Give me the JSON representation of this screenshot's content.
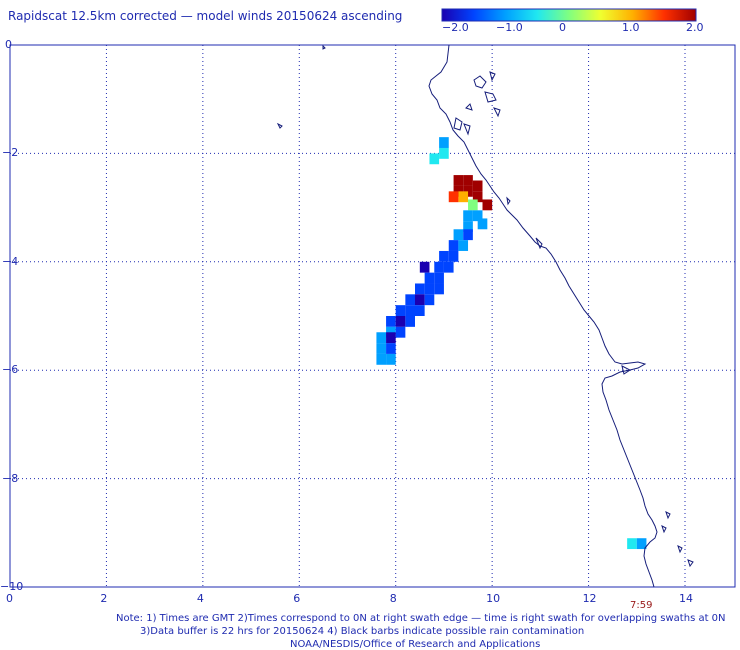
{
  "title": "Rapidscat 12.5km corrected — model winds 20150624 ascending",
  "colorbar": {
    "ticks": [
      "−2.0",
      "−1.0",
      "0",
      "1.0",
      "2.0"
    ],
    "stops": [
      "#1a00b0",
      "#0044ff",
      "#00a0ff",
      "#20e8f0",
      "#80ff80",
      "#f0ff30",
      "#ffb000",
      "#ff3000",
      "#a00000"
    ],
    "range": [
      -2.0,
      2.0
    ]
  },
  "axes": {
    "x_ticks": [
      "0",
      "2",
      "4",
      "6",
      "8",
      "10",
      "12",
      "14"
    ],
    "y_ticks": [
      "0",
      "−2",
      "−4",
      "−6",
      "−8",
      "−10"
    ],
    "xlim": [
      0,
      14.5
    ],
    "ylim": [
      -10,
      0
    ],
    "grid": "dotted"
  },
  "time_label": "7:59",
  "notes": {
    "line1": "Note: 1) Times are GMT 2)Times correspond to 0N at right swath edge — time is right swath for overlapping swaths at 0N",
    "line2": "3)Data buffer is 22 hrs for 20150624 4) Black barbs indicate possible rain contamination",
    "line3": "NOAA/NESDIS/Office of Research and Applications"
  },
  "colors": {
    "text": "#1f2bb0",
    "grid": "#1f2bb0",
    "coast": "#151d7a",
    "time": "#9a1a1a"
  },
  "wind_cells": [
    {
      "lon": 9.0,
      "lat": -1.8,
      "v": -0.8
    },
    {
      "lon": 9.0,
      "lat": -2.0,
      "v": -0.3
    },
    {
      "lon": 8.8,
      "lat": -2.1,
      "v": -0.5
    },
    {
      "lon": 9.3,
      "lat": -2.5,
      "v": 2.0
    },
    {
      "lon": 9.5,
      "lat": -2.5,
      "v": 2.0
    },
    {
      "lon": 9.7,
      "lat": -2.6,
      "v": 2.0
    },
    {
      "lon": 9.3,
      "lat": -2.7,
      "v": 2.0
    },
    {
      "lon": 9.5,
      "lat": -2.7,
      "v": 2.0
    },
    {
      "lon": 9.7,
      "lat": -2.8,
      "v": 2.0
    },
    {
      "lon": 9.4,
      "lat": -2.8,
      "v": 1.0
    },
    {
      "lon": 9.2,
      "lat": -2.8,
      "v": 1.3
    },
    {
      "lon": 9.6,
      "lat": -2.95,
      "v": 0.2
    },
    {
      "lon": 9.9,
      "lat": -2.95,
      "v": 2.0
    },
    {
      "lon": 9.5,
      "lat": -3.15,
      "v": -0.9
    },
    {
      "lon": 9.7,
      "lat": -3.15,
      "v": -1.0
    },
    {
      "lon": 9.8,
      "lat": -3.3,
      "v": -0.8
    },
    {
      "lon": 9.5,
      "lat": -3.35,
      "v": -1.0
    },
    {
      "lon": 9.3,
      "lat": -3.5,
      "v": -1.1
    },
    {
      "lon": 9.5,
      "lat": -3.5,
      "v": -1.6
    },
    {
      "lon": 9.2,
      "lat": -3.7,
      "v": -1.7
    },
    {
      "lon": 9.4,
      "lat": -3.7,
      "v": -1.2
    },
    {
      "lon": 9.0,
      "lat": -3.9,
      "v": -1.6
    },
    {
      "lon": 9.2,
      "lat": -3.9,
      "v": -1.3
    },
    {
      "lon": 8.9,
      "lat": -4.1,
      "v": -1.5
    },
    {
      "lon": 9.1,
      "lat": -4.1,
      "v": -1.3
    },
    {
      "lon": 8.6,
      "lat": -4.1,
      "v": -2.0
    },
    {
      "lon": 8.7,
      "lat": -4.3,
      "v": -1.5
    },
    {
      "lon": 8.9,
      "lat": -4.3,
      "v": -1.6
    },
    {
      "lon": 8.5,
      "lat": -4.5,
      "v": -1.7
    },
    {
      "lon": 8.7,
      "lat": -4.5,
      "v": -1.4
    },
    {
      "lon": 8.9,
      "lat": -4.5,
      "v": -1.6
    },
    {
      "lon": 8.3,
      "lat": -4.7,
      "v": -1.6
    },
    {
      "lon": 8.5,
      "lat": -4.7,
      "v": -1.8
    },
    {
      "lon": 8.7,
      "lat": -4.7,
      "v": -1.4
    },
    {
      "lon": 8.1,
      "lat": -4.9,
      "v": -1.5
    },
    {
      "lon": 8.3,
      "lat": -4.9,
      "v": -1.7
    },
    {
      "lon": 8.5,
      "lat": -4.9,
      "v": -1.5
    },
    {
      "lon": 7.9,
      "lat": -5.1,
      "v": -1.4
    },
    {
      "lon": 8.1,
      "lat": -5.1,
      "v": -2.0
    },
    {
      "lon": 8.3,
      "lat": -5.1,
      "v": -1.6
    },
    {
      "lon": 7.9,
      "lat": -5.3,
      "v": -1.2
    },
    {
      "lon": 8.1,
      "lat": -5.3,
      "v": -1.6
    },
    {
      "lon": 7.7,
      "lat": -5.4,
      "v": -1.0
    },
    {
      "lon": 7.9,
      "lat": -5.4,
      "v": -1.8
    },
    {
      "lon": 7.7,
      "lat": -5.6,
      "v": -1.1
    },
    {
      "lon": 7.9,
      "lat": -5.6,
      "v": -1.3
    },
    {
      "lon": 7.7,
      "lat": -5.8,
      "v": -1.0
    },
    {
      "lon": 7.9,
      "lat": -5.8,
      "v": -1.1
    },
    {
      "lon": 12.9,
      "lat": -9.2,
      "v": -0.3
    },
    {
      "lon": 13.1,
      "lat": -9.2,
      "v": -0.8
    }
  ]
}
